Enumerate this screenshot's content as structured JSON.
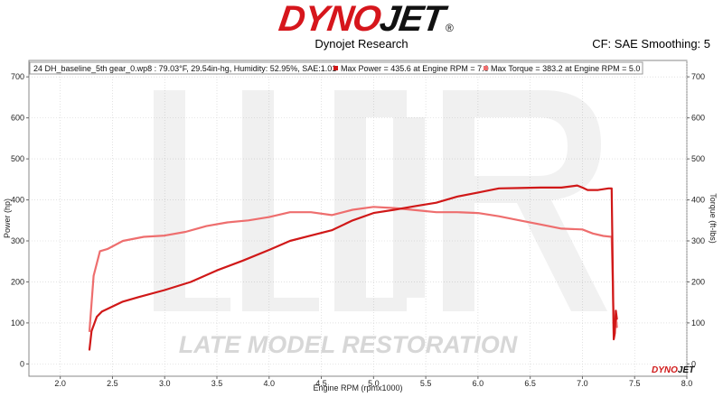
{
  "header": {
    "logo_dyno": "DYNO",
    "logo_jet": "JET",
    "logo_reg": "®",
    "subtitle": "Dynojet Research",
    "cf_info": "CF: SAE Smoothing: 5"
  },
  "watermark": {
    "text": "LATE MODEL RESTORATION"
  },
  "corner_logo": {
    "dyno": "DYNO",
    "jet": "JET"
  },
  "colors": {
    "power": "#d01818",
    "torque": "#ee6e6e",
    "grid": "#cfcfcf",
    "frame": "#888888"
  },
  "chart_data": {
    "type": "line",
    "xlabel": "Engine RPM (rpmx1000)",
    "ylabel_left": "Power (hp)",
    "ylabel_right": "Torque (ft-lbs)",
    "xlim": [
      1.7,
      8.0
    ],
    "ylim": [
      -30,
      740
    ],
    "x_ticks": [
      "2.0",
      "2.5",
      "3.0",
      "3.5",
      "4.0",
      "4.5",
      "5.0",
      "5.5",
      "6.0",
      "6.5",
      "7.0",
      "7.5",
      "8.0"
    ],
    "y_ticks_left": [
      "0",
      "100",
      "200",
      "300",
      "400",
      "500",
      "600",
      "700"
    ],
    "y_ticks_right": [
      "0",
      "100",
      "200",
      "300",
      "400",
      "500",
      "600",
      "700"
    ],
    "grid": true,
    "legend": {
      "run": "24 DH_baseline_5th gear_0.wp8  : 79.03°F, 29.54in-hg, Humidity: 52.95%, SAE:1.01",
      "power": "Max Power = 435.6 at Engine RPM = 7.0",
      "torque": "Max Torque = 383.2 at Engine RPM = 5.0"
    },
    "series": [
      {
        "name": "Power",
        "axis": "left",
        "x": [
          2.28,
          2.3,
          2.35,
          2.4,
          2.5,
          2.6,
          2.75,
          3.0,
          3.25,
          3.5,
          3.75,
          4.0,
          4.2,
          4.4,
          4.6,
          4.8,
          5.0,
          5.2,
          5.4,
          5.6,
          5.8,
          6.0,
          6.2,
          6.4,
          6.6,
          6.8,
          6.95,
          7.0,
          7.05,
          7.15,
          7.25,
          7.28,
          7.29,
          7.3,
          7.31,
          7.32,
          7.33
        ],
        "y": [
          35,
          80,
          115,
          128,
          140,
          152,
          163,
          180,
          200,
          228,
          252,
          278,
          300,
          313,
          326,
          350,
          368,
          376,
          385,
          393,
          408,
          418,
          428,
          429,
          430,
          430,
          435,
          430,
          424,
          424,
          428,
          428,
          230,
          60,
          75,
          130,
          110
        ]
      },
      {
        "name": "Torque",
        "axis": "right",
        "x": [
          2.28,
          2.32,
          2.38,
          2.45,
          2.6,
          2.8,
          3.0,
          3.2,
          3.4,
          3.6,
          3.8,
          4.0,
          4.2,
          4.4,
          4.6,
          4.8,
          5.0,
          5.2,
          5.4,
          5.6,
          5.8,
          6.0,
          6.2,
          6.4,
          6.6,
          6.8,
          7.0,
          7.1,
          7.2,
          7.28,
          7.29,
          7.3,
          7.31,
          7.32,
          7.33
        ],
        "y": [
          80,
          215,
          275,
          280,
          300,
          310,
          313,
          322,
          336,
          345,
          350,
          358,
          370,
          370,
          363,
          376,
          383,
          380,
          375,
          370,
          370,
          368,
          360,
          350,
          340,
          330,
          328,
          318,
          312,
          310,
          200,
          70,
          90,
          120,
          90
        ]
      }
    ]
  }
}
